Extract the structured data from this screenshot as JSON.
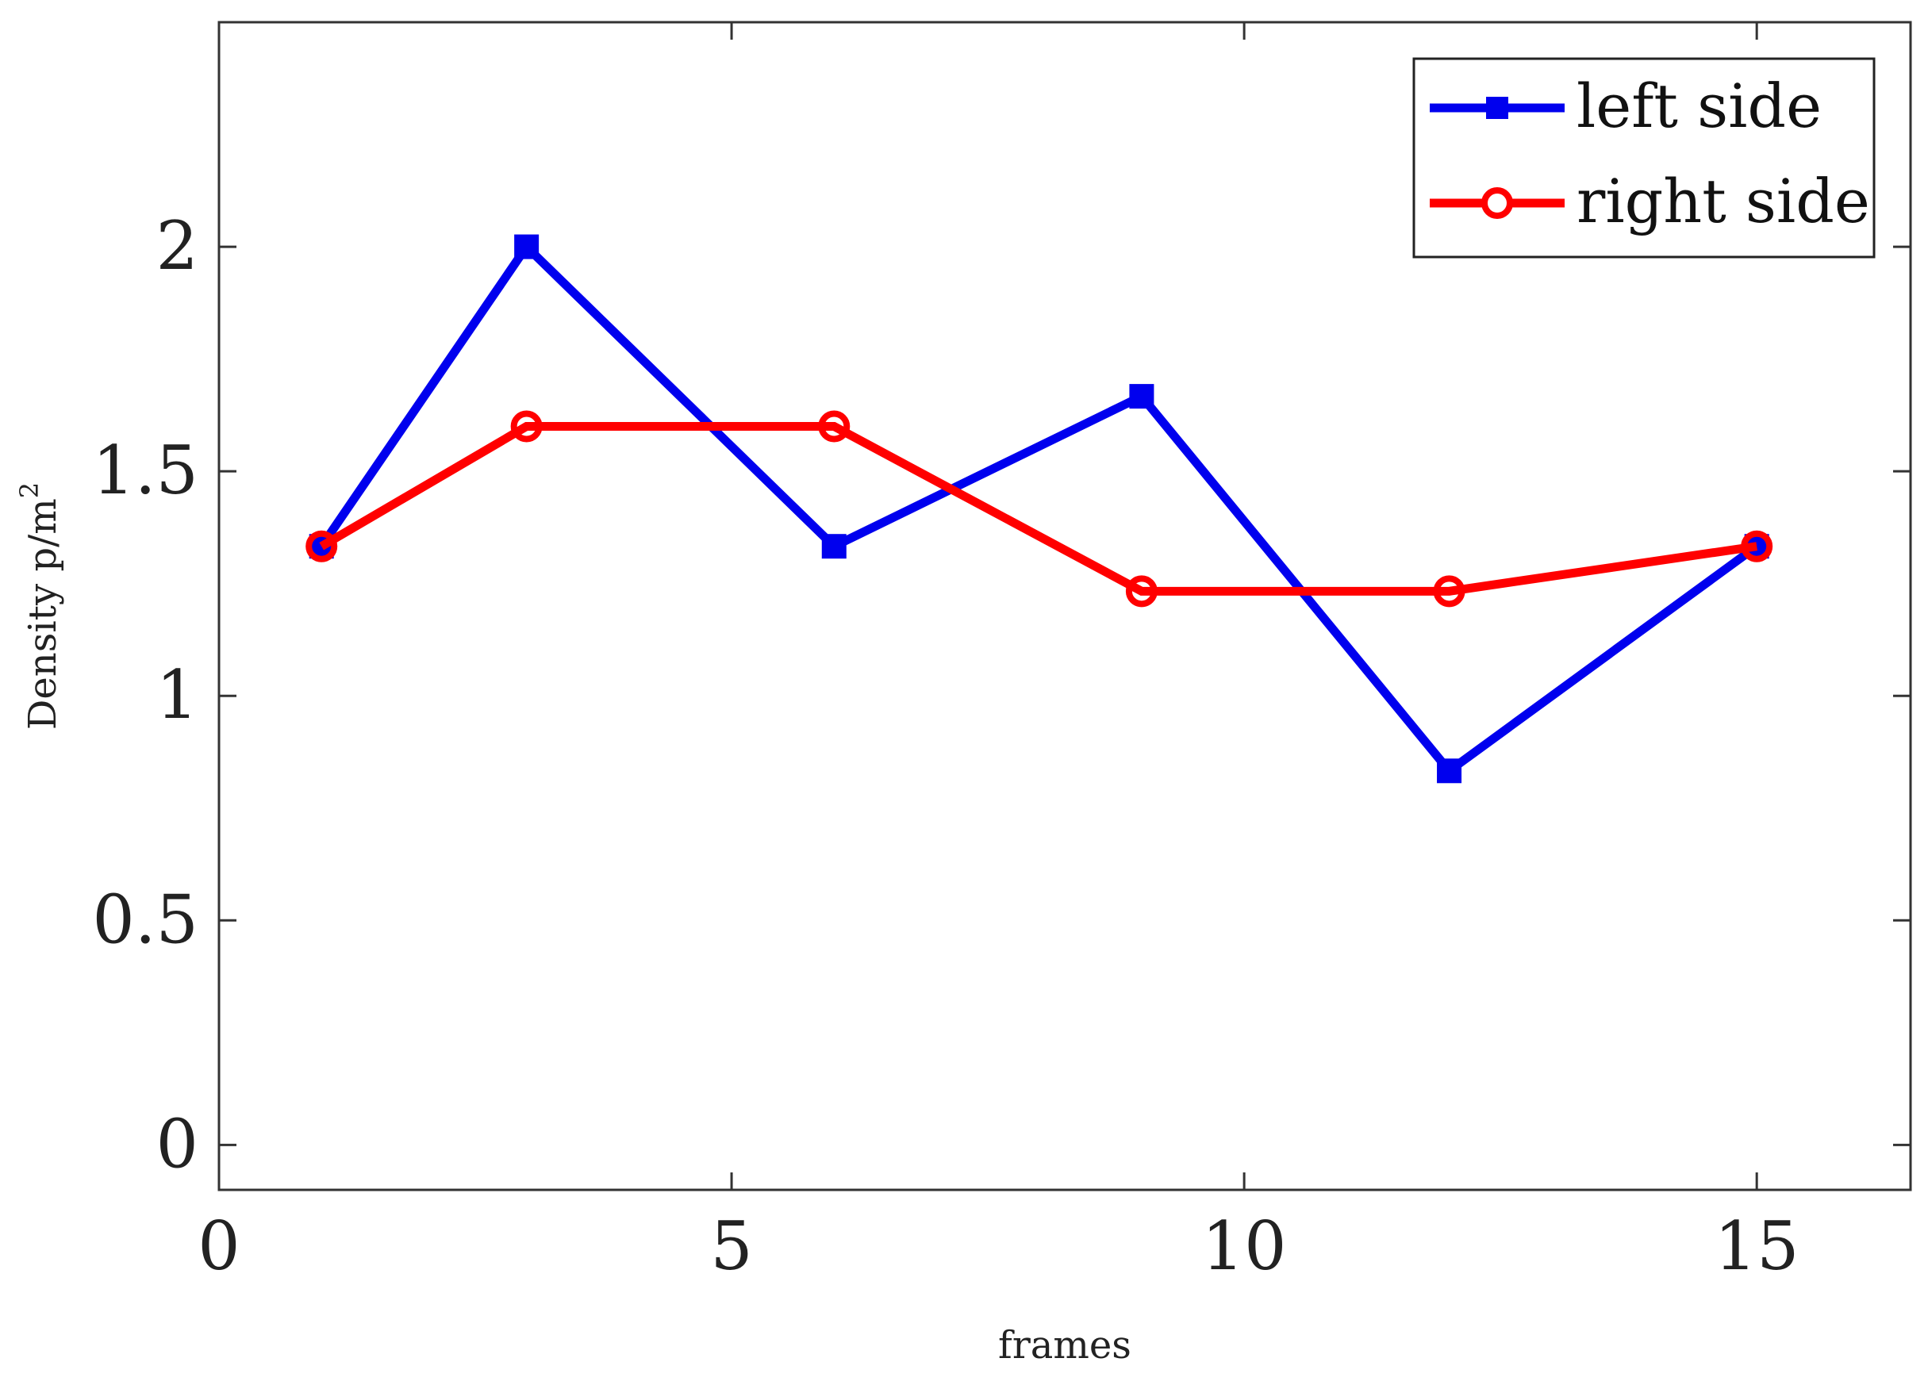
{
  "chart_data": {
    "type": "line",
    "title": "",
    "xlabel": "frames",
    "ylabel": "Density p/m",
    "ylabel_superscript": "2",
    "xlim": [
      0,
      16.5
    ],
    "ylim": [
      -0.1,
      2.5
    ],
    "xticks": [
      0,
      5,
      10,
      15
    ],
    "yticks": [
      0,
      0.5,
      1,
      1.5,
      2
    ],
    "xtick_labels": [
      "0",
      "5",
      "10",
      "15"
    ],
    "ytick_labels": [
      "0",
      "0.5",
      "1",
      "1.5",
      "2"
    ],
    "grid": false,
    "legend_position": "top-right",
    "series": [
      {
        "name": "left side",
        "color": "#0000ee",
        "marker": "square",
        "x": [
          1,
          3,
          6,
          9,
          12,
          15
        ],
        "y": [
          1.333,
          2.0,
          1.333,
          1.667,
          0.833,
          1.333
        ]
      },
      {
        "name": "right side",
        "color": "#ff0000",
        "marker": "circle",
        "x": [
          1,
          3,
          6,
          9,
          12,
          15
        ],
        "y": [
          1.333,
          1.6,
          1.6,
          1.233,
          1.233,
          1.333
        ]
      }
    ]
  }
}
